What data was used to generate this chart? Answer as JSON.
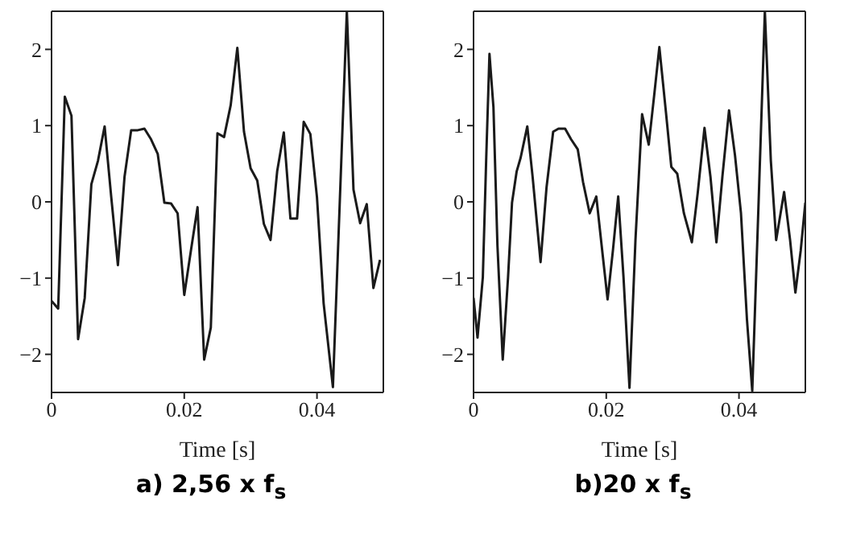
{
  "chart_data": [
    {
      "type": "line",
      "title": "a) 2,56 x f$_{s}$",
      "xlabel": "Time [s]",
      "xlim": [
        0,
        0.05
      ],
      "ylim": [
        -2.5,
        2.5
      ],
      "xticks": [
        0,
        0.02,
        0.04
      ],
      "yticks": [
        -2,
        -1,
        0,
        1,
        2
      ],
      "marker": "none",
      "line_style": "solid",
      "series": [
        {
          "color": "#1a1a1a",
          "x": [
            0,
            0.001,
            0.002,
            0.003,
            0.004,
            0.005,
            0.006,
            0.007,
            0.008,
            0.009,
            0.01,
            0.011,
            0.012,
            0.013,
            0.014,
            0.015,
            0.016,
            0.017,
            0.018,
            0.019,
            0.02,
            0.021,
            0.022,
            0.023,
            0.024,
            0.025,
            0.026,
            0.027,
            0.028,
            0.029,
            0.03,
            0.031,
            0.032,
            0.033,
            0.034,
            0.035,
            0.036,
            0.037,
            0.038,
            0.039,
            0.04,
            0.041,
            0.0424,
            0.0445,
            0.0455,
            0.0465,
            0.0475,
            0.0485,
            0.0495
          ],
          "values": [
            -1.3,
            -1.4,
            1.38,
            1.13,
            -1.8,
            -1.26,
            0.23,
            0.54,
            0.99,
            0.06,
            -0.83,
            0.33,
            0.94,
            0.94,
            0.96,
            0.82,
            0.63,
            -0.01,
            -0.02,
            -0.15,
            -1.22,
            -0.64,
            -0.07,
            -2.07,
            -1.65,
            0.9,
            0.85,
            1.27,
            2.02,
            0.92,
            0.44,
            0.28,
            -0.29,
            -0.5,
            0.4,
            0.91,
            -0.22,
            -0.22,
            1.05,
            0.89,
            0.06,
            -1.33,
            -2.43,
            2.5,
            0.16,
            -0.28,
            -0.03,
            -1.13,
            -0.76
          ]
        }
      ]
    },
    {
      "type": "line",
      "title": "b)20 x f$_{s}$",
      "xlabel": "Time [s]",
      "xlim": [
        0,
        0.05
      ],
      "ylim": [
        -2.5,
        2.5
      ],
      "xticks": [
        0,
        0.02,
        0.04
      ],
      "yticks": [
        -2,
        -1,
        0,
        1,
        2
      ],
      "marker": "none",
      "line_style": "solid",
      "series": [
        {
          "color": "#1a1a1a",
          "x": [
            0,
            0.0006,
            0.0014,
            0.0019,
            0.0024,
            0.003,
            0.0036,
            0.0044,
            0.0052,
            0.0058,
            0.0065,
            0.0071,
            0.0081,
            0.0089,
            0.0101,
            0.011,
            0.012,
            0.0128,
            0.0138,
            0.0147,
            0.0157,
            0.0165,
            0.0175,
            0.0185,
            0.0193,
            0.0202,
            0.021,
            0.0218,
            0.0226,
            0.0235,
            0.0244,
            0.0254,
            0.0264,
            0.0272,
            0.028,
            0.029,
            0.0298,
            0.0307,
            0.0317,
            0.0329,
            0.0338,
            0.0348,
            0.0357,
            0.0366,
            0.0375,
            0.0385,
            0.0394,
            0.0403,
            0.0412,
            0.042,
            0.0429,
            0.0439,
            0.0448,
            0.0456,
            0.0468,
            0.0477,
            0.0485,
            0.0493,
            0.05
          ],
          "values": [
            -1.26,
            -1.78,
            -0.99,
            0.54,
            1.94,
            1.24,
            -0.57,
            -2.07,
            -0.99,
            -0.01,
            0.4,
            0.58,
            0.99,
            0.33,
            -0.79,
            0.19,
            0.92,
            0.96,
            0.96,
            0.82,
            0.69,
            0.26,
            -0.15,
            0.07,
            -0.57,
            -1.28,
            -0.64,
            0.07,
            -0.99,
            -2.44,
            -0.5,
            1.15,
            0.75,
            1.38,
            2.03,
            1.17,
            0.46,
            0.37,
            -0.15,
            -0.53,
            0.13,
            0.97,
            0.33,
            -0.53,
            0.33,
            1.2,
            0.61,
            -0.15,
            -1.54,
            -2.48,
            -0.15,
            2.5,
            0.54,
            -0.5,
            0.13,
            -0.5,
            -1.19,
            -0.64,
            -0.01
          ]
        }
      ]
    }
  ]
}
